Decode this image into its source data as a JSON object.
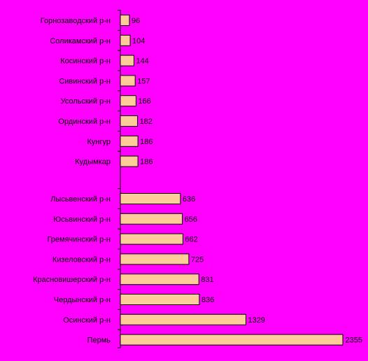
{
  "chart_data": {
    "type": "bar",
    "orientation": "horizontal",
    "background": "#ff00ff",
    "bar_color": "#ffcc99",
    "bar_stroke": "#000000",
    "title": "",
    "xlabel": "",
    "ylabel": "",
    "xlim": [
      0,
      2600
    ],
    "grid": false,
    "legend": "none",
    "groups": [
      {
        "categories": [
          "Горнозаводский р-н",
          "Соликамский р-н",
          "Косинский р-н",
          "Сивинский р-н",
          "Усольский р-н",
          "Ординский р-н",
          "Кунгур",
          "Кудымкар"
        ],
        "values": [
          96,
          104,
          144,
          157,
          166,
          182,
          186,
          186
        ]
      },
      {
        "categories": [
          "Лысьвенский р-н",
          "Юсьвинский р-н",
          "Гремячинский р-н",
          "Кизеловский р-н",
          "Красновишерский р-н",
          "Чердынский р-н",
          "Осинский р-н",
          "Пермь"
        ],
        "values": [
          636,
          656,
          662,
          725,
          831,
          836,
          1329,
          2355
        ]
      }
    ]
  }
}
